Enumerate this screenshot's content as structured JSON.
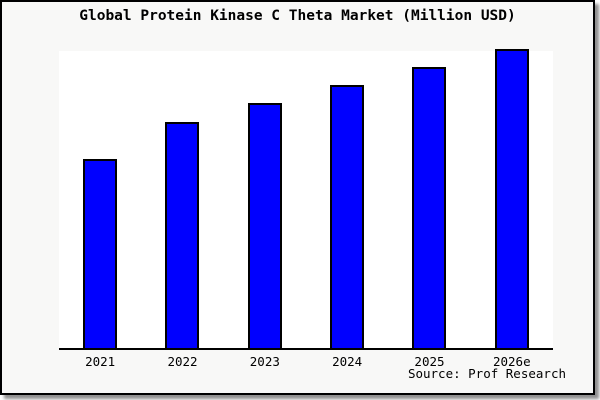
{
  "header": {
    "title": "Global Protein Kinase C Theta Market (Million USD)"
  },
  "footer": {
    "source": "Source: Prof Research"
  },
  "chart_data": {
    "type": "bar",
    "title": "Global Protein Kinase C Theta Market (Million USD)",
    "categories": [
      "2021",
      "2022",
      "2023",
      "2024",
      "2025",
      "2026e"
    ],
    "values": [
      62.9,
      75.4,
      81.8,
      88.0,
      94.0,
      100.0
    ],
    "value_unit": "relative height, % of tallest bar (no y-axis labels shown)",
    "xlabel": "",
    "ylabel": "",
    "ylim": [
      0,
      100
    ],
    "y_axis_ticks_visible": false,
    "gridlines": false,
    "legend_position": "none",
    "bar_fill_color": "#0000FF",
    "bar_edge_color": "#000000"
  },
  "colors": {
    "card_background": "#f8f8f7",
    "plot_background": "#ffffff",
    "frame_border": "#000000",
    "axis_line": "#000000",
    "text": "#000000",
    "bar_fill": "#0000FF"
  }
}
